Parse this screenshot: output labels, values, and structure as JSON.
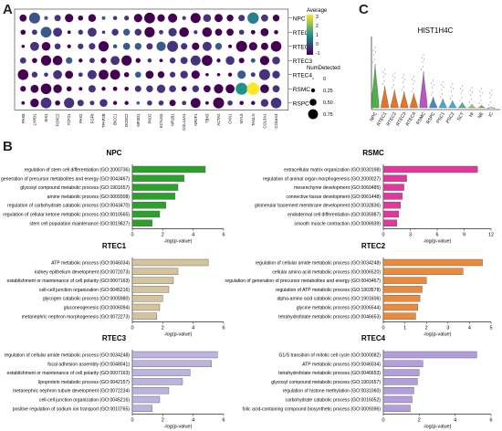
{
  "panel_labels": {
    "a": "A",
    "b": "B",
    "c": "C"
  },
  "dotplot": {
    "rows": [
      "NPC",
      "RTEC1",
      "RTEC2",
      "RTEC3",
      "RTEC4",
      "RSMC",
      "RSPC"
    ],
    "genes": [
      "PAX8",
      "LYPD1",
      "SIX1",
      "FOXC2",
      "TCF21",
      "PAX2",
      "FGF8",
      "TFAP2B",
      "BICC1",
      "DCDC2",
      "MFSD1",
      "PKD2",
      "KCNJ15",
      "NR1B1",
      "COL14A1",
      "NR2F1",
      "TBX3",
      "ACTA2",
      "CNN1",
      "MYL9",
      "TAGLN",
      "COL3A1",
      "COL6A3"
    ],
    "legend_average_title": "Average",
    "legend_average_ticks": [
      "3",
      "2",
      "1",
      "0",
      "-1"
    ],
    "legend_size_title": "NumDetected",
    "legend_size_ticks": [
      "0",
      "0.25",
      "0.50",
      "0.75"
    ],
    "colors": {
      "low": "#440154",
      "mid": "#21918c",
      "high": "#fde725"
    }
  },
  "violin": {
    "title": "HIST1H4C",
    "groups": [
      "NPC",
      "RTEC1",
      "RTEC2",
      "RTEC3",
      "RTEC4",
      "RSMC",
      "RSPC",
      "PSC1",
      "PSC2",
      "SCT",
      "NI",
      "NE",
      "IC"
    ],
    "colors": [
      "#33a02c",
      "#d95f02",
      "#d95f02",
      "#d95f02",
      "#d95f02",
      "#a83ab0",
      "#1f78b4",
      "#1f9bd6",
      "#1f9bd6",
      "#22a884",
      "#7fbf3f",
      "#a6761d",
      "#999999"
    ],
    "ymax": 4
  },
  "bars": {
    "xlabel": "-log(p-value)",
    "panels": [
      {
        "title": "NPC",
        "color": "#2ca02c",
        "ticks": [
          "0",
          "2",
          "4",
          "6"
        ],
        "xmax": 6,
        "items": [
          {
            "label": "regulation of stem cell differentiation (GO:2000736)",
            "value": 4.8
          },
          {
            "label": "regulation of generation of precursor metabolites and energy (GO:0043467)",
            "value": 3.4
          },
          {
            "label": "glycosyl compound metabolic process (GO:1901657)",
            "value": 3.0
          },
          {
            "label": "amine metabolic process (GO:0009308)",
            "value": 2.8
          },
          {
            "label": "regulation of carbohydrate catabolic process (GO:0043470)",
            "value": 2.2
          },
          {
            "label": "regulation of cellular ketone metabolic process (GO:0010565)",
            "value": 1.8
          },
          {
            "label": "stem cell population maintenance (GO:0019827)",
            "value": 1.3
          }
        ]
      },
      {
        "title": "RSMC",
        "color": "#e0389e",
        "ticks": [
          "0",
          "3",
          "6",
          "9",
          "12"
        ],
        "xmax": 12,
        "items": [
          {
            "label": "extracellular matrix organization (GO:0030198)",
            "value": 10.5
          },
          {
            "label": "regulation of animal organ morphogenesis (GO:2000027)",
            "value": 2.6
          },
          {
            "label": "mesenchyme development (GO:0060485)",
            "value": 2.3
          },
          {
            "label": "connective tissue development (GO:0061448)",
            "value": 2.1
          },
          {
            "label": "glomerular basement membrane development (GO:0032836)",
            "value": 1.9
          },
          {
            "label": "endodermal cell differentiation (GO:0035987)",
            "value": 1.7
          },
          {
            "label": "smooth muscle contraction (GO:0006939)",
            "value": 1.5
          }
        ]
      },
      {
        "title": "RTEC1",
        "color": "#d4c39c",
        "ticks": [
          "0",
          "2",
          "4",
          "6"
        ],
        "xmax": 6,
        "items": [
          {
            "label": "ATP metabolic process (GO:0046034)",
            "value": 5.0
          },
          {
            "label": "kidney epithelium development (GO:0072073)",
            "value": 3.0
          },
          {
            "label": "establishment or maintenance of cell polarity (GO:0007163)",
            "value": 2.7
          },
          {
            "label": "cell-cell junction organization (GO:0045216)",
            "value": 2.4
          },
          {
            "label": "glycogen catabolic process (GO:0005980)",
            "value": 2.0
          },
          {
            "label": "gluconeogenesis (GO:0006094)",
            "value": 1.8
          },
          {
            "label": "metanephric nephron morphogenesis (GO:0072273)",
            "value": 1.6
          }
        ]
      },
      {
        "title": "RTEC2",
        "color": "#e98a3c",
        "ticks": [
          "0",
          "1",
          "2",
          "3",
          "4",
          "5"
        ],
        "xmax": 5,
        "items": [
          {
            "label": "regulation of cellular amide metabolic process (GO:0034248)",
            "value": 4.6
          },
          {
            "label": "cellular amino acid metabolic process (GO:0006520)",
            "value": 3.7
          },
          {
            "label": "regulation of generation of precursor metabolites and energy (GO:0043467)",
            "value": 2.0
          },
          {
            "label": "regulation of ATP metabolic process (GO:1903578)",
            "value": 1.8
          },
          {
            "label": "alpha-amino acid catabolic process (GO:1901606)",
            "value": 1.7
          },
          {
            "label": "glycine metabolic process (GO:0006544)",
            "value": 1.6
          },
          {
            "label": "tetrahydrofolate metabolic process (GO:0046653)",
            "value": 1.5
          }
        ]
      },
      {
        "title": "RTEC3",
        "color": "#bdb3e0",
        "ticks": [
          "0",
          "2",
          "4",
          "6"
        ],
        "xmax": 6,
        "items": [
          {
            "label": "regulation of cellular amide metabolic process (GO:0034248)",
            "value": 5.6
          },
          {
            "label": "focal adhesion assembly (GO:0048041)",
            "value": 5.2
          },
          {
            "label": "establishment or maintenance of cell polarity (GO:0007163)",
            "value": 3.8
          },
          {
            "label": "lipoprotein metabolic process (GO:0042157)",
            "value": 3.3
          },
          {
            "label": "metanephric nephron tubule development (GO:0072234)",
            "value": 2.4
          },
          {
            "label": "cell-cell junction organization (GO:0045216)",
            "value": 1.8
          },
          {
            "label": "positive regulation of sodium ion transport (GO:0010765)",
            "value": 1.3
          }
        ]
      },
      {
        "title": "RTEC4",
        "color": "#b39ddc",
        "ticks": [
          "0",
          "2",
          "4",
          "6"
        ],
        "xmax": 6,
        "items": [
          {
            "label": "G1/S transition of mitotic cell cycle (GO:0000082)",
            "value": 5.2
          },
          {
            "label": "ATP metabolic process (GO:0046034)",
            "value": 2.2
          },
          {
            "label": "tetrahydrofolate metabolic process (GO:0046653)",
            "value": 2.0
          },
          {
            "label": "glycosyl compound metabolic process (GO:1901657)",
            "value": 1.9
          },
          {
            "label": "regulation of histone methylation (GO:0031060)",
            "value": 1.7
          },
          {
            "label": "carbohydrate catabolic process (GO:0016052)",
            "value": 1.6
          },
          {
            "label": "folic acid-containing compound biosynthetic process (GO:0009396)",
            "value": 1.5
          }
        ]
      }
    ]
  }
}
